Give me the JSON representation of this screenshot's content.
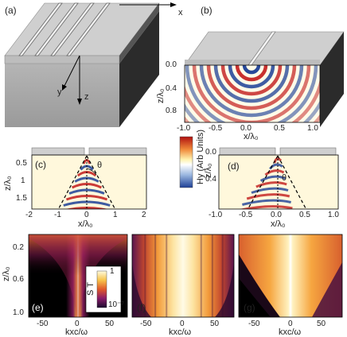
{
  "panels": {
    "a": "(a)",
    "b": "(b)",
    "c": "(c)",
    "d": "(d)",
    "e": "(e)",
    "f": "(f)",
    "g": "(g)"
  },
  "axes3d": {
    "x": "x",
    "y": "y",
    "z": "z"
  },
  "panel_b": {
    "ylabel": "z/λ₀",
    "xlabel": "x/λ₀",
    "yticks": [
      "0.0",
      "0.4",
      "0.8"
    ],
    "xticks": [
      "-1.0",
      "-0.5",
      "0.0",
      "0.5",
      "1.0"
    ]
  },
  "panel_c": {
    "ylabel": "z/λ₀",
    "xlabel": "x/λ₀",
    "yticks": [
      "0.5",
      "1",
      "1.5"
    ],
    "xticks": [
      "-2",
      "-1",
      "0",
      "1",
      "2"
    ],
    "theta": "θ"
  },
  "colorbar_hy": {
    "label": "Hy (Arb Units)"
  },
  "panel_d": {
    "ylabel": "z/λ₀",
    "xlabel": "x/λ₀",
    "yticks": [
      "0.0",
      "0.4"
    ],
    "xticks": [
      "-1.0",
      "-0.5",
      "0.0",
      "0.5",
      "1.0"
    ],
    "theta": "θ"
  },
  "bottom_row": {
    "ylabel": "z/λ₀",
    "yticks": [
      "0.2",
      "0.6",
      "1.0"
    ],
    "xlabel": "kxc/ω",
    "xticks": [
      "-50",
      "0",
      "50"
    ]
  },
  "colorbar_st": {
    "label": "S T",
    "max": "1",
    "min": "10⁻⁷"
  },
  "colors": {
    "metal_top": "#c9c9c9",
    "metal_front": "#a9a9a9",
    "metal_side": "#2a2a2a",
    "wave_pos": "#c21a1a",
    "wave_neg": "#1c3f96",
    "heat_dark": "#000000",
    "heat_bright": "#fff6d0"
  }
}
